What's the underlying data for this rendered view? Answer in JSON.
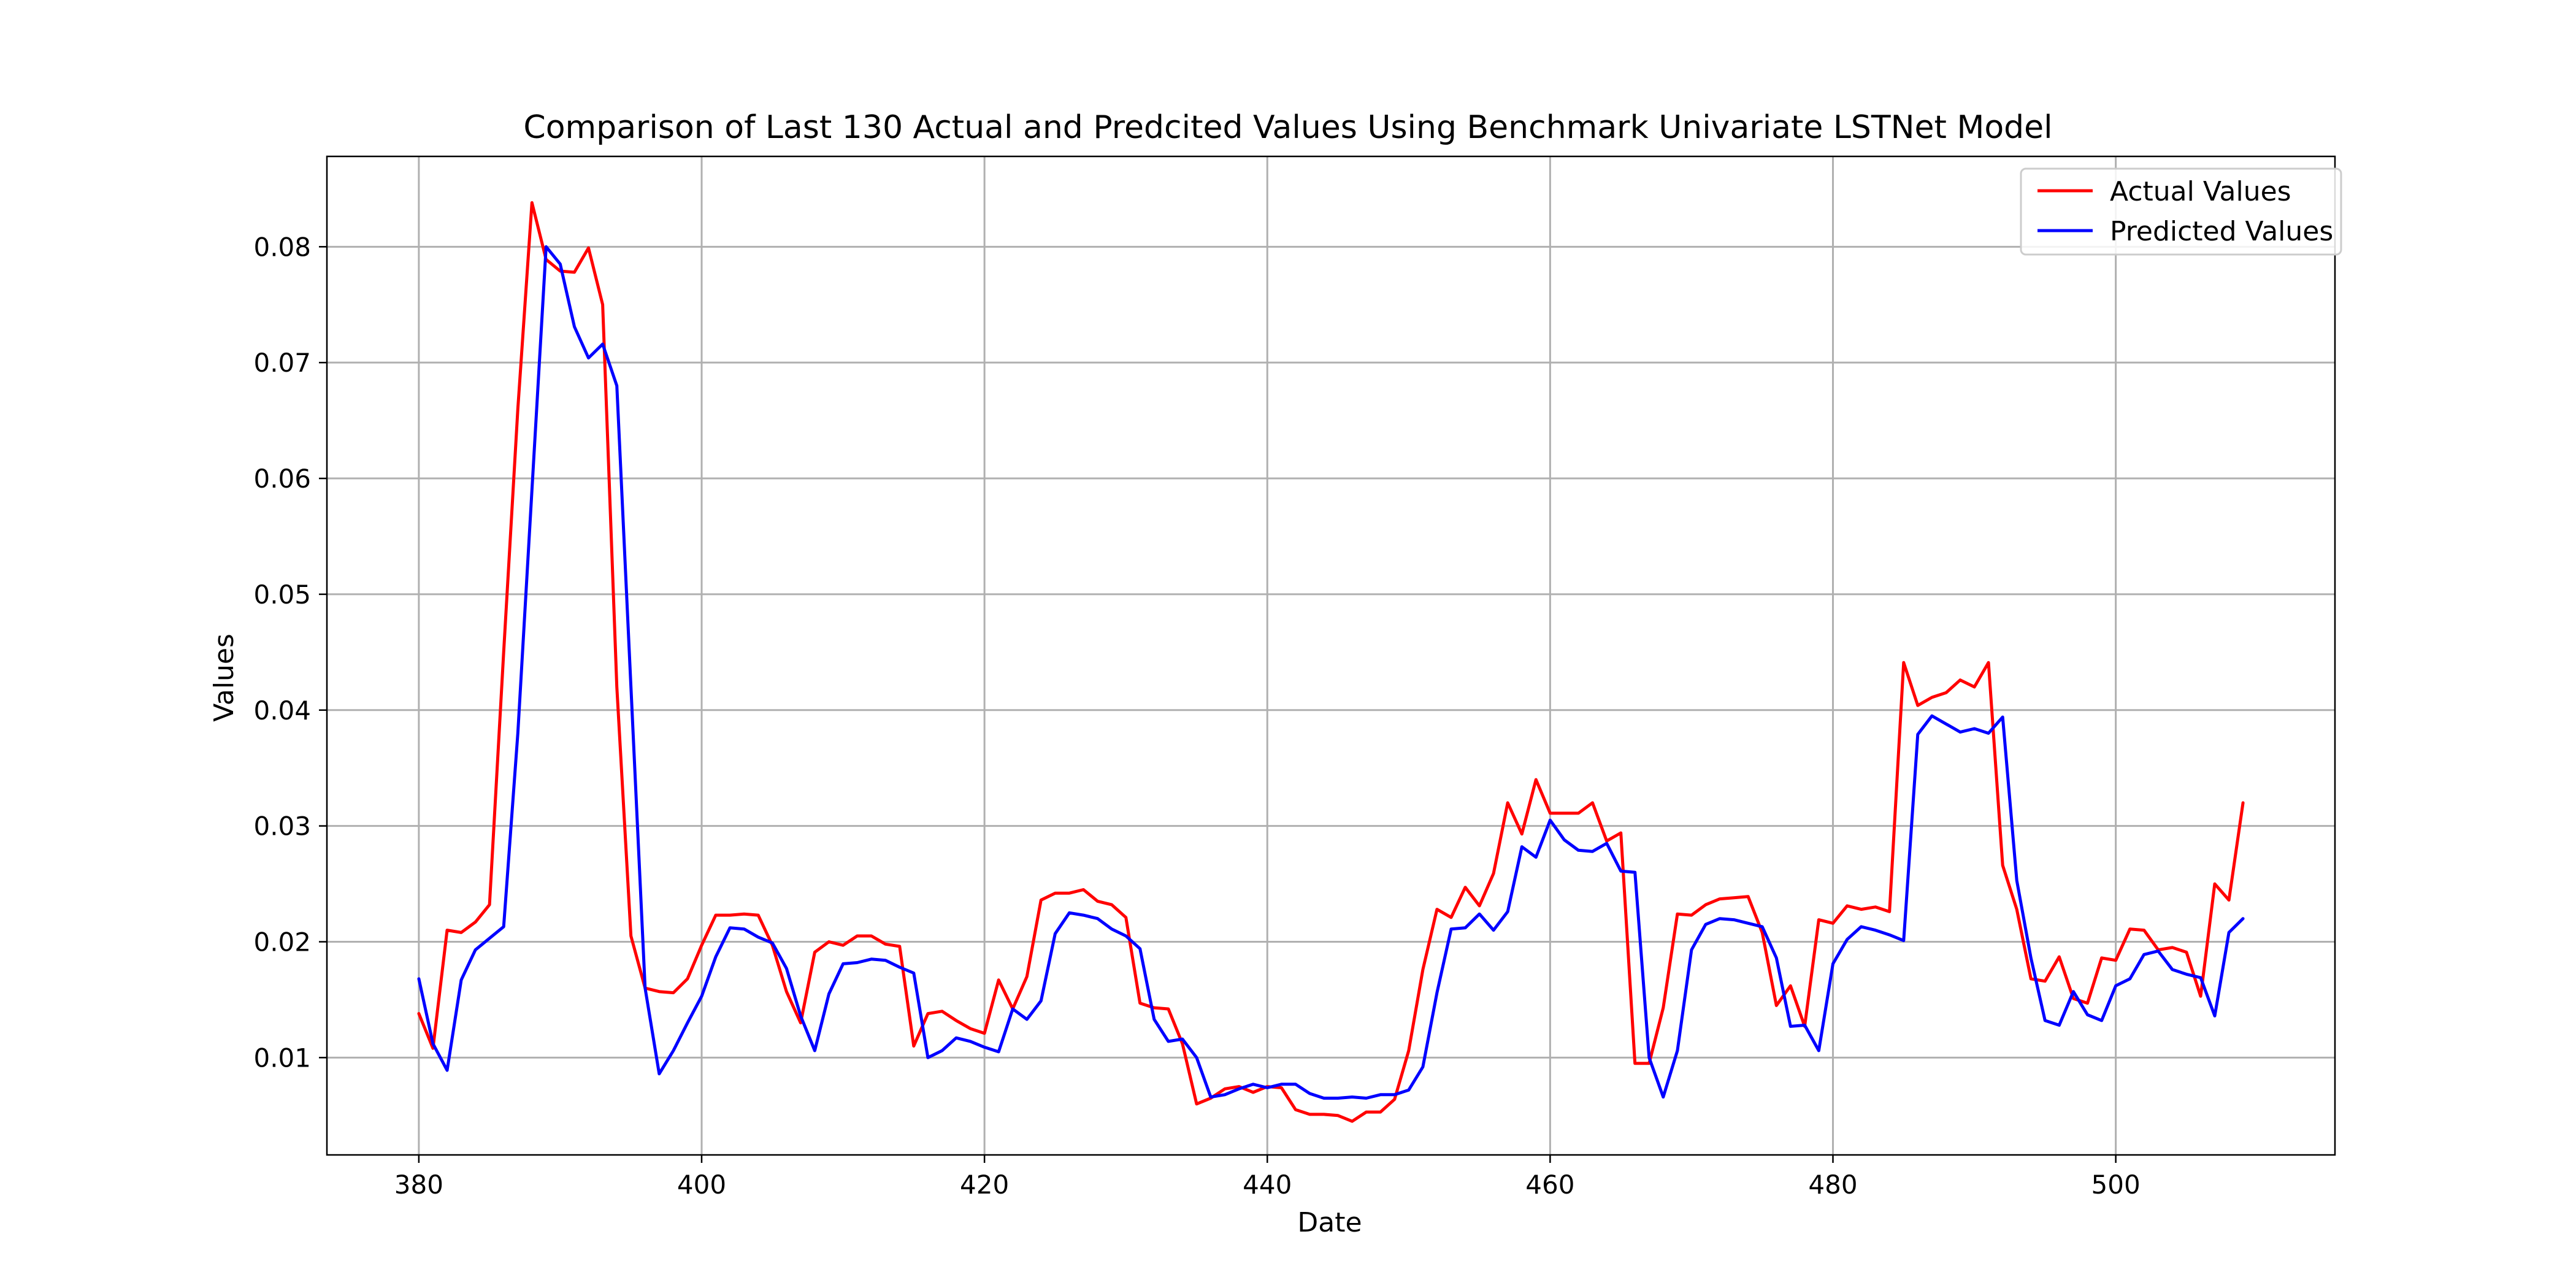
{
  "chart_data": {
    "type": "line",
    "title": "Comparison of Last 130 Actual and Predcited Values Using Benchmark Univariate LSTNet Model",
    "xlabel": "Date",
    "ylabel": "Values",
    "xlim": [
      373.5,
      515.5
    ],
    "ylim": [
      0.0016,
      0.0878
    ],
    "xticks": [
      380,
      400,
      420,
      440,
      460,
      480,
      500
    ],
    "yticks": [
      0.01,
      0.02,
      0.03,
      0.04,
      0.05,
      0.06,
      0.07,
      0.08
    ],
    "grid": true,
    "legend_position": "top-right",
    "x_start": 380,
    "series": [
      {
        "name": "Actual Values",
        "color": "#ff0000",
        "values": [
          0.0138,
          0.0108,
          0.021,
          0.0208,
          0.0217,
          0.0232,
          0.045,
          0.066,
          0.0838,
          0.0789,
          0.0779,
          0.0778,
          0.0799,
          0.075,
          0.042,
          0.0205,
          0.016,
          0.0157,
          0.0156,
          0.0168,
          0.0197,
          0.0223,
          0.0223,
          0.0224,
          0.0223,
          0.0197,
          0.0157,
          0.013,
          0.0191,
          0.02,
          0.0197,
          0.0205,
          0.0205,
          0.0198,
          0.0196,
          0.011,
          0.0138,
          0.014,
          0.0132,
          0.0125,
          0.0121,
          0.0167,
          0.0142,
          0.017,
          0.0236,
          0.0242,
          0.0242,
          0.0245,
          0.0235,
          0.0232,
          0.0221,
          0.0147,
          0.0143,
          0.0142,
          0.0112,
          0.006,
          0.0065,
          0.0073,
          0.0075,
          0.007,
          0.0075,
          0.0074,
          0.0055,
          0.0051,
          0.0051,
          0.005,
          0.0045,
          0.0053,
          0.0053,
          0.0064,
          0.0106,
          0.0176,
          0.0228,
          0.0221,
          0.0247,
          0.0231,
          0.0259,
          0.032,
          0.0293,
          0.034,
          0.0311,
          0.0311,
          0.0311,
          0.032,
          0.0287,
          0.0294,
          0.0095,
          0.0095,
          0.0143,
          0.0224,
          0.0223,
          0.0232,
          0.0237,
          0.0238,
          0.0239,
          0.0208,
          0.0145,
          0.0162,
          0.0127,
          0.0219,
          0.0216,
          0.0231,
          0.0228,
          0.023,
          0.0226,
          0.0441,
          0.0404,
          0.0411,
          0.0415,
          0.0426,
          0.042,
          0.0441,
          0.0266,
          0.0228,
          0.0168,
          0.0166,
          0.0187,
          0.0151,
          0.0147,
          0.0186,
          0.0184,
          0.0211,
          0.021,
          0.0193,
          0.0195,
          0.0191,
          0.0153,
          0.025,
          0.0236,
          0.032
        ]
      },
      {
        "name": "Predicted Values",
        "color": "#0000ff",
        "values": [
          0.0168,
          0.0112,
          0.0089,
          0.0167,
          0.0193,
          0.0203,
          0.0213,
          0.038,
          0.059,
          0.08,
          0.0785,
          0.0731,
          0.0704,
          0.0716,
          0.068,
          0.042,
          0.016,
          0.0086,
          0.0106,
          0.013,
          0.0153,
          0.0187,
          0.0212,
          0.0211,
          0.0204,
          0.0199,
          0.0177,
          0.0136,
          0.0106,
          0.0155,
          0.0181,
          0.0182,
          0.0185,
          0.0184,
          0.0178,
          0.0173,
          0.01,
          0.0106,
          0.0117,
          0.0114,
          0.0109,
          0.0105,
          0.0142,
          0.0133,
          0.0149,
          0.0207,
          0.0225,
          0.0223,
          0.022,
          0.0211,
          0.0205,
          0.0194,
          0.0133,
          0.0114,
          0.0116,
          0.01,
          0.0066,
          0.0068,
          0.0073,
          0.0077,
          0.0074,
          0.0077,
          0.0077,
          0.0069,
          0.0065,
          0.0065,
          0.0066,
          0.0065,
          0.0068,
          0.0068,
          0.0072,
          0.0092,
          0.0156,
          0.0211,
          0.0212,
          0.0224,
          0.021,
          0.0226,
          0.0282,
          0.0273,
          0.0305,
          0.0288,
          0.0279,
          0.0278,
          0.0285,
          0.0261,
          0.026,
          0.01,
          0.0066,
          0.0106,
          0.0193,
          0.0215,
          0.022,
          0.0219,
          0.0216,
          0.0213,
          0.0186,
          0.0127,
          0.0128,
          0.0106,
          0.0181,
          0.0202,
          0.0213,
          0.021,
          0.0206,
          0.0201,
          0.0379,
          0.0395,
          0.0388,
          0.0381,
          0.0384,
          0.038,
          0.0394,
          0.0253,
          0.0186,
          0.0132,
          0.0128,
          0.0157,
          0.0137,
          0.0132,
          0.0162,
          0.0168,
          0.0189,
          0.0192,
          0.0176,
          0.0172,
          0.0169,
          0.0136,
          0.0208,
          0.022
        ]
      }
    ]
  }
}
